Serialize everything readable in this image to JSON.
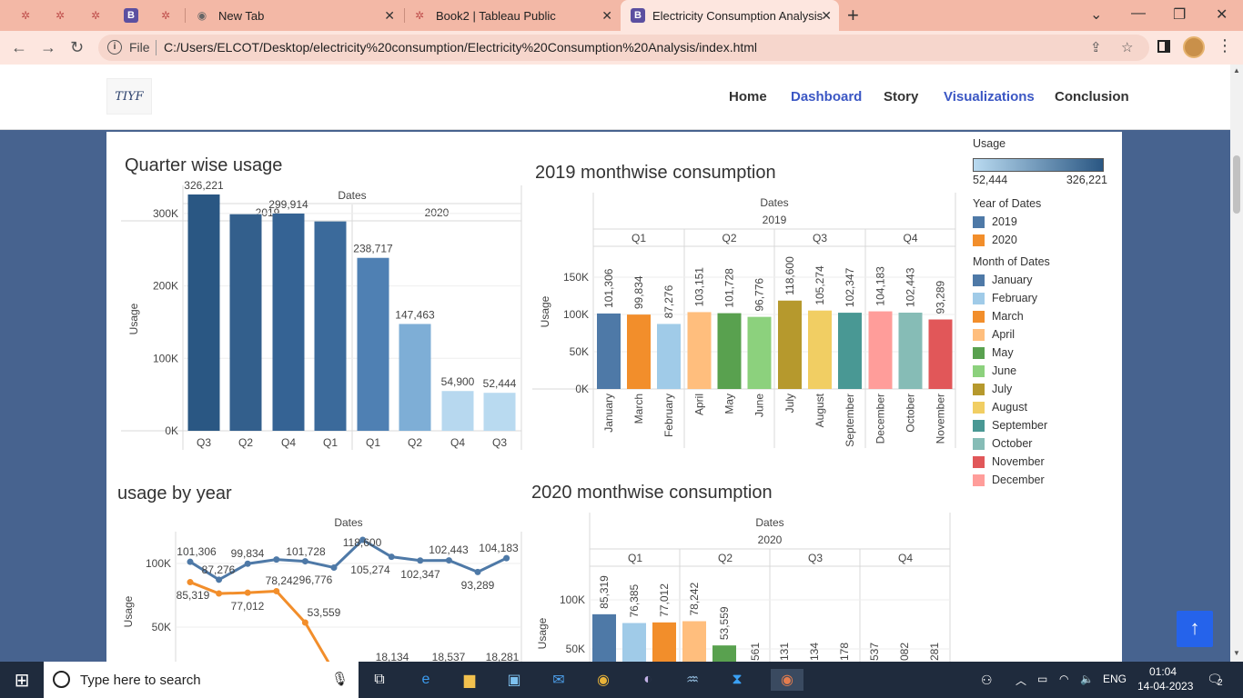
{
  "browser": {
    "tabs": [
      {
        "title": "New Tab"
      },
      {
        "title": "Book2 | Tableau Public"
      },
      {
        "title": "Electricity Consumption Analysis"
      }
    ],
    "file_label": "File",
    "url": "C:/Users/ELCOT/Desktop/electricity%20consumption/Electricity%20Consumption%20Analysis/index.html"
  },
  "site": {
    "logo_text": "TIYF",
    "nav": [
      {
        "label": "Home"
      },
      {
        "label": "Dashboard"
      },
      {
        "label": "Story"
      },
      {
        "label": "Visualizations"
      },
      {
        "label": "Conclusion"
      }
    ]
  },
  "charts": {
    "quarter_title": "Quarter wise usage",
    "m2019_title": "2019 monthwise consumption",
    "year_title": "usage by year",
    "m2020_title": "2020 monthwise consumption",
    "dates_label": "Dates",
    "usage_label": "Usage"
  },
  "legend": {
    "usage_title": "Usage",
    "usage_min": "52,444",
    "usage_max": "326,221",
    "year_title": "Year of Dates",
    "years": [
      {
        "label": "2019",
        "color": "#4e79a7"
      },
      {
        "label": "2020",
        "color": "#f28e2b"
      }
    ],
    "month_title": "Month of Dates",
    "months": [
      {
        "label": "January",
        "color": "#4e79a7"
      },
      {
        "label": "February",
        "color": "#a0cbe8"
      },
      {
        "label": "March",
        "color": "#f28e2b"
      },
      {
        "label": "April",
        "color": "#ffbe7d"
      },
      {
        "label": "May",
        "color": "#59a14f"
      },
      {
        "label": "June",
        "color": "#8cd17d"
      },
      {
        "label": "July",
        "color": "#b6992d"
      },
      {
        "label": "August",
        "color": "#f1ce63"
      },
      {
        "label": "September",
        "color": "#499894"
      },
      {
        "label": "October",
        "color": "#86bcb6"
      },
      {
        "label": "November",
        "color": "#e15759"
      },
      {
        "label": "December",
        "color": "#ff9d9a"
      }
    ]
  },
  "chart_data": [
    {
      "id": "quarter",
      "type": "bar",
      "title": "Quarter wise usage",
      "xlabel": "Dates",
      "ylabel": "Usage",
      "ylim": [
        0,
        340000
      ],
      "yticks": [
        "0K",
        "100K",
        "200K",
        "300K"
      ],
      "groups": [
        {
          "year": "2019",
          "categories": [
            "Q3",
            "Q2",
            "Q4",
            "Q1"
          ],
          "values": [
            326221,
            299000,
            299914,
            289000
          ],
          "labels": [
            "326,221",
            "",
            "299,914",
            ""
          ],
          "colors": [
            "#2a5783",
            "#335f8c",
            "#356394",
            "#3b6a9b"
          ]
        },
        {
          "year": "2020",
          "categories": [
            "Q1",
            "Q2",
            "Q4",
            "Q3"
          ],
          "values": [
            238717,
            147463,
            54900,
            52444
          ],
          "labels": [
            "238,717",
            "147,463",
            "54,900",
            "52,444"
          ],
          "colors": [
            "#4f80b3",
            "#7eaed6",
            "#b7d8ef",
            "#b9daf0"
          ]
        }
      ]
    },
    {
      "id": "m2019",
      "type": "bar",
      "title": "2019 monthwise consumption",
      "year": "2019",
      "ylabel": "Usage",
      "ylim": [
        0,
        160000
      ],
      "yticks": [
        "0K",
        "50K",
        "100K",
        "150K"
      ],
      "quarters": [
        {
          "label": "Q1",
          "months": [
            "January",
            "March",
            "February"
          ],
          "values": [
            101306,
            99834,
            87276
          ],
          "labels": [
            "101,306",
            "99,834",
            "87,276"
          ],
          "colors": [
            "#4e79a7",
            "#f28e2b",
            "#a0cbe8"
          ]
        },
        {
          "label": "Q2",
          "months": [
            "April",
            "May",
            "June"
          ],
          "values": [
            103151,
            101728,
            96776
          ],
          "labels": [
            "103,151",
            "101,728",
            "96,776"
          ],
          "colors": [
            "#ffbe7d",
            "#59a14f",
            "#8cd17d"
          ]
        },
        {
          "label": "Q3",
          "months": [
            "July",
            "August",
            "September"
          ],
          "values": [
            118600,
            105274,
            102347
          ],
          "labels": [
            "118,600",
            "105,274",
            "102,347"
          ],
          "colors": [
            "#b6992d",
            "#f1ce63",
            "#499894"
          ]
        },
        {
          "label": "Q4",
          "months": [
            "December",
            "October",
            "November"
          ],
          "values": [
            104183,
            102443,
            93289
          ],
          "labels": [
            "104,183",
            "102,443",
            "93,289"
          ],
          "colors": [
            "#ff9d9a",
            "#86bcb6",
            "#e15759"
          ]
        }
      ]
    },
    {
      "id": "year",
      "type": "line",
      "title": "usage by year",
      "xlabel": "Dates",
      "ylabel": "Usage",
      "yticks": [
        "50K",
        "100K"
      ],
      "series": [
        {
          "name": "2019",
          "color": "#4e79a7",
          "values": [
            101306,
            87276,
            99834,
            103151,
            101728,
            96776,
            118600,
            105274,
            102347,
            102443,
            93289,
            104183
          ],
          "labels": [
            "101,306",
            "87,276",
            "99,834",
            "",
            "101,728",
            "96,776",
            "118,600",
            "105,274",
            "102,347",
            "102,443",
            "93,289",
            "104,183"
          ]
        },
        {
          "name": "2020",
          "color": "#f28e2b",
          "values": [
            85319,
            76385,
            77012,
            78242,
            53559,
            15000
          ],
          "labels": [
            "85,319",
            "",
            "77,012",
            "78,242",
            "53,559",
            ""
          ]
        }
      ],
      "extra_labels": [
        "18,134",
        "18,537",
        "18,281"
      ]
    },
    {
      "id": "m2020",
      "type": "bar",
      "title": "2020 monthwise consumption",
      "year": "2020",
      "ylabel": "Usage",
      "yticks": [
        "50K",
        "100K"
      ],
      "quarters": [
        "Q1",
        "Q2",
        "Q3",
        "Q4"
      ],
      "values": [
        85319,
        76385,
        77012,
        78242,
        53559
      ],
      "labels": [
        "85,319",
        "76,385",
        "77,012",
        "78,242",
        "53,559"
      ],
      "colors": [
        "#4e79a7",
        "#a0cbe8",
        "#f28e2b",
        "#ffbe7d",
        "#59a14f"
      ],
      "partial_labels": [
        "561",
        "131",
        "134",
        "178",
        "537",
        "082",
        "281"
      ]
    }
  ],
  "taskbar": {
    "search_placeholder": "Type here to search",
    "lang": "ENG",
    "time": "01:04",
    "date": "14-04-2023",
    "notifications": "2"
  }
}
